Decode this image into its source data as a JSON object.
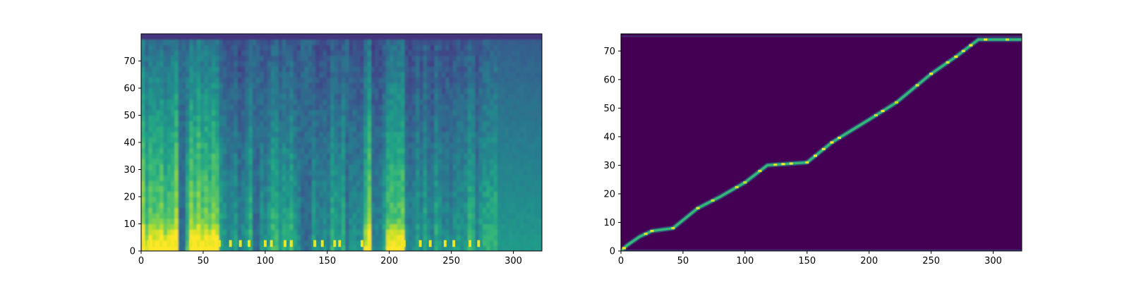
{
  "chart_data": [
    {
      "type": "heatmap",
      "colormap": "viridis",
      "x_ticks": [
        "0",
        "50",
        "100",
        "150",
        "200",
        "250",
        "300"
      ],
      "y_ticks": [
        "0",
        "10",
        "20",
        "30",
        "40",
        "50",
        "60",
        "70"
      ],
      "xlim": [
        0,
        323
      ],
      "ylim": [
        0,
        80
      ],
      "grid": false,
      "frames": 323,
      "channels": 80,
      "bright_low_band_frames": [
        2,
        6,
        10,
        16,
        22,
        28,
        40,
        46,
        52,
        58,
        63,
        72,
        80,
        87,
        100,
        105,
        116,
        121,
        140,
        146,
        156,
        160,
        178,
        184,
        200,
        206,
        212,
        225,
        233,
        245,
        252,
        265,
        272
      ],
      "loud_segments": [
        [
          0,
          30
        ],
        [
          38,
          64
        ],
        [
          178,
          185
        ],
        [
          198,
          212
        ]
      ],
      "silence_segments": [
        [
          30,
          36
        ],
        [
          90,
          96
        ],
        [
          130,
          138
        ],
        [
          163,
          167
        ],
        [
          288,
          323
        ]
      ]
    },
    {
      "type": "heatmap",
      "colormap": "viridis",
      "x_ticks": [
        "0",
        "50",
        "100",
        "150",
        "200",
        "250",
        "300"
      ],
      "y_ticks": [
        "0",
        "10",
        "20",
        "30",
        "40",
        "50",
        "60",
        "70"
      ],
      "xlim": [
        0,
        323
      ],
      "ylim": [
        0,
        76
      ],
      "grid": false,
      "alignment_path": [
        [
          0,
          0
        ],
        [
          5,
          2
        ],
        [
          15,
          5
        ],
        [
          25,
          7
        ],
        [
          42,
          8
        ],
        [
          62,
          15
        ],
        [
          80,
          19
        ],
        [
          100,
          24
        ],
        [
          118,
          30
        ],
        [
          150,
          31
        ],
        [
          170,
          38
        ],
        [
          200,
          46
        ],
        [
          222,
          52
        ],
        [
          250,
          62
        ],
        [
          270,
          68
        ],
        [
          288,
          74
        ],
        [
          323,
          74
        ]
      ]
    }
  ]
}
